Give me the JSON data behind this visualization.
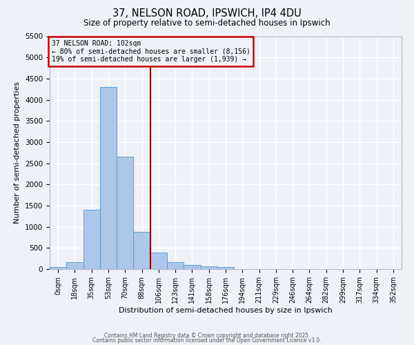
{
  "title1": "37, NELSON ROAD, IPSWICH, IP4 4DU",
  "title2": "Size of property relative to semi-detached houses in Ipswich",
  "xlabel": "Distribution of semi-detached houses by size in Ipswich",
  "ylabel": "Number of semi-detached properties",
  "categories": [
    "0sqm",
    "18sqm",
    "35sqm",
    "53sqm",
    "70sqm",
    "88sqm",
    "106sqm",
    "123sqm",
    "141sqm",
    "158sqm",
    "176sqm",
    "194sqm",
    "211sqm",
    "229sqm",
    "246sqm",
    "264sqm",
    "282sqm",
    "299sqm",
    "317sqm",
    "334sqm",
    "352sqm"
  ],
  "bar_values": [
    50,
    170,
    1400,
    4300,
    2650,
    880,
    390,
    170,
    100,
    65,
    50,
    0,
    0,
    0,
    0,
    0,
    0,
    0,
    0,
    0,
    0
  ],
  "bar_color": "#aec6e8",
  "bar_edge_color": "#5a9fd4",
  "red_line_color": "#8b0000",
  "red_line_x": 5.5,
  "annotation_text1": "37 NELSON ROAD: 102sqm",
  "annotation_text2": "← 80% of semi-detached houses are smaller (8,156)",
  "annotation_text3": "19% of semi-detached houses are larger (1,939) →",
  "annotation_box_color": "#cc0000",
  "ylim": [
    0,
    5500
  ],
  "yticks": [
    0,
    500,
    1000,
    1500,
    2000,
    2500,
    3000,
    3500,
    4000,
    4500,
    5000,
    5500
  ],
  "background_color": "#eef2f8",
  "grid_color": "#ffffff",
  "footer1": "Contains HM Land Registry data © Crown copyright and database right 2025.",
  "footer2": "Contains public sector information licensed under the Open Government Licence v3.0."
}
